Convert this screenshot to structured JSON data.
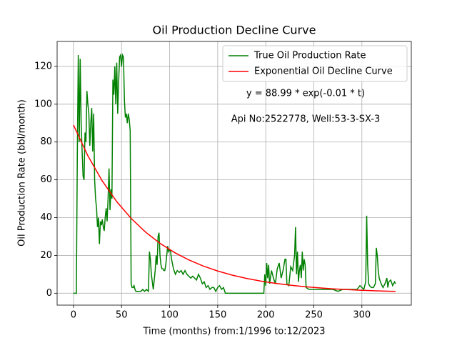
{
  "chart_data": {
    "type": "line",
    "title": "Oil Production Decline Curve",
    "xlabel": "Time (months) from:1/1996 to:12/2023",
    "ylabel": "Oil Production Rate (bbl/month)",
    "annotations": [
      "y = 88.99 * exp(-0.01 * t)",
      "Api No:2522778, Well:53-3-SX-3"
    ],
    "xlim": [
      -17,
      351.4
    ],
    "ylim": [
      -6.3,
      133.2
    ],
    "xticks": [
      0,
      50,
      100,
      150,
      200,
      250,
      300
    ],
    "yticks": [
      0,
      20,
      40,
      60,
      80,
      100,
      120
    ],
    "grid": true,
    "legend": "upper right",
    "series": [
      {
        "name": "True Oil Production Rate",
        "color": "#008000",
        "x": [
          0,
          3,
          4,
          5,
          6,
          7,
          8,
          9,
          10,
          11,
          12,
          13,
          14,
          15,
          16,
          17,
          18,
          19,
          20,
          21,
          22,
          23,
          24,
          25,
          26,
          27,
          28,
          29,
          30,
          31,
          32,
          33,
          34,
          35,
          36,
          37,
          38,
          39,
          40,
          41,
          42,
          43,
          44,
          45,
          46,
          47,
          48,
          49,
          50,
          51,
          52,
          53,
          54,
          55,
          56,
          57,
          58,
          59,
          60,
          61,
          62,
          63,
          64,
          65,
          70,
          72,
          74,
          76,
          78,
          79,
          80,
          81,
          82,
          83,
          85,
          86,
          87,
          88,
          89,
          90,
          91,
          92,
          93,
          94,
          95,
          96,
          97,
          98,
          99,
          100,
          101,
          102,
          104,
          106,
          108,
          110,
          112,
          114,
          116,
          118,
          120,
          122,
          124,
          126,
          128,
          130,
          132,
          134,
          136,
          138,
          140,
          142,
          144,
          146,
          148,
          150,
          152,
          154,
          156,
          158,
          170,
          185,
          198,
          199,
          200,
          201,
          202,
          203,
          204,
          206,
          208,
          210,
          212,
          214,
          216,
          218,
          220,
          221,
          222,
          224,
          226,
          228,
          230,
          231,
          232,
          233,
          234,
          235,
          236,
          237,
          238,
          239,
          240,
          241,
          242,
          245,
          250,
          260,
          270,
          275,
          280,
          290,
          295,
          298,
          300,
          302,
          304,
          305,
          306,
          307,
          308,
          310,
          312,
          314,
          315,
          316,
          317,
          318,
          320,
          322,
          324,
          326,
          327,
          328,
          330,
          332,
          334,
          335
        ],
        "values": [
          0,
          0,
          73,
          126,
          80,
          124,
          90,
          75,
          62,
          60,
          85,
          80,
          107,
          100,
          95,
          78,
          90,
          98,
          75,
          95,
          60,
          50,
          45,
          35,
          40,
          26,
          38,
          36,
          39,
          35,
          33,
          40,
          45,
          38,
          50,
          66,
          44,
          55,
          50,
          113,
          105,
          120,
          100,
          122,
          95,
          112,
          125,
          126,
          120,
          126,
          125,
          102,
          93,
          95,
          90,
          95,
          92,
          86,
          5,
          3,
          3,
          4,
          2,
          1,
          1,
          2,
          1,
          2,
          1,
          22,
          18,
          10,
          6,
          2,
          12,
          20,
          15,
          30,
          32,
          20,
          15,
          13,
          13,
          12,
          12,
          15,
          20,
          25,
          22,
          23,
          22,
          18,
          13,
          10,
          12,
          11,
          12,
          10,
          12,
          10,
          9,
          8,
          9,
          8,
          7,
          10,
          8,
          5,
          6,
          3,
          4,
          2,
          3,
          3,
          1,
          3,
          4,
          2,
          3,
          0,
          0,
          0,
          0,
          10,
          4,
          16,
          8,
          15,
          5,
          12,
          8,
          5,
          13,
          16,
          8,
          12,
          18,
          18,
          5,
          4,
          14,
          12,
          20,
          35,
          10,
          22,
          6,
          12,
          15,
          8,
          22,
          12,
          18,
          15,
          3,
          2,
          2,
          2,
          2,
          1,
          2,
          2,
          2,
          4,
          3,
          2,
          6,
          41,
          15,
          5,
          4,
          3,
          3,
          5,
          24,
          20,
          12,
          8,
          5,
          3,
          5,
          8,
          3,
          6,
          7,
          4,
          6,
          5
        ]
      },
      {
        "name": "Exponential Oil Decline Curve",
        "color": "#ff0000",
        "x": [
          0,
          15,
          30,
          45,
          60,
          75,
          90,
          105,
          120,
          135,
          150,
          165,
          180,
          195,
          210,
          225,
          240,
          255,
          270,
          285,
          300,
          315,
          330,
          335
        ],
        "values": [
          88.99,
          72.68,
          59.36,
          48.47,
          39.59,
          32.33,
          26.4,
          21.56,
          17.61,
          14.38,
          11.75,
          9.59,
          7.83,
          6.4,
          5.22,
          4.27,
          3.49,
          2.85,
          2.32,
          1.9,
          1.55,
          1.26,
          1.03,
          0.97
        ]
      }
    ]
  }
}
